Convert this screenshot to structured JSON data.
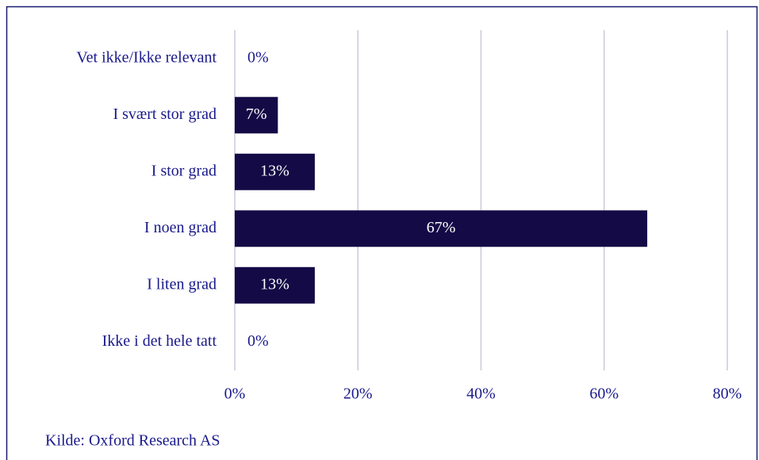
{
  "chart_data": {
    "type": "hbar",
    "categories": [
      "Vet ikke/Ikke relevant",
      "I svært stor grad",
      "I stor grad",
      "I noen grad",
      "I liten grad",
      "Ikke i det hele tatt"
    ],
    "values": [
      0,
      7,
      13,
      67,
      13,
      0
    ],
    "value_labels": [
      "0%",
      "7%",
      "13%",
      "67%",
      "13%",
      "0%"
    ],
    "color": "#140a46",
    "xlim": [
      0,
      80
    ],
    "xticks": [
      {
        "value": 0,
        "label": "0%"
      },
      {
        "value": 20,
        "label": "20%"
      },
      {
        "value": 40,
        "label": "40%"
      },
      {
        "value": 60,
        "label": "60%"
      },
      {
        "value": 80,
        "label": "80%"
      }
    ],
    "grid": true,
    "source": "Kilde: Oxford Research AS"
  }
}
